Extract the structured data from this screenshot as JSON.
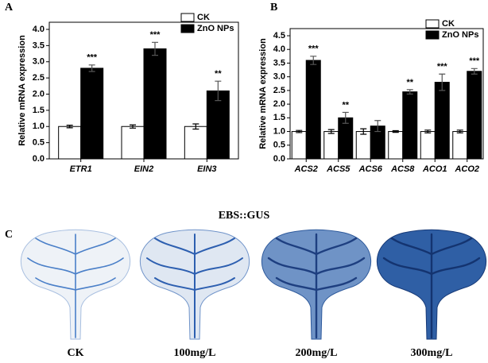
{
  "chart_data": [
    {
      "type": "bar",
      "panel_label": "A",
      "ylabel": "Relative mRNA expression",
      "categories": [
        "ETR1",
        "EIN2",
        "EIN3"
      ],
      "series": [
        {
          "name": "CK",
          "color": "#ffffff",
          "values": [
            1,
            1,
            1
          ],
          "errors": [
            0.04,
            0.05,
            0.08
          ]
        },
        {
          "name": "ZnO NPs",
          "color": "#000000",
          "values": [
            2.8,
            3.4,
            2.1
          ],
          "errors": [
            0.1,
            0.2,
            0.3
          ]
        }
      ],
      "significance": [
        "***",
        "***",
        "**"
      ],
      "ylim": [
        0,
        4
      ],
      "yticks": [
        {
          "value": 0,
          "label": "0.0"
        },
        0.5,
        {
          "value": 1,
          "label": "1.0"
        },
        1.5,
        {
          "value": 2,
          "label": "2.0"
        },
        2.5,
        {
          "value": 3,
          "label": "3.0"
        },
        3.5,
        {
          "value": 4,
          "label": "4.0"
        }
      ],
      "legend": "upper right"
    },
    {
      "type": "bar",
      "panel_label": "B",
      "ylabel": "Relative mRNA expression",
      "categories": [
        "ACS2",
        "ACS5",
        "ACS6",
        "ACS8",
        "ACO1",
        "ACO2"
      ],
      "series": [
        {
          "name": "CK",
          "color": "#ffffff",
          "values": [
            1,
            1,
            1,
            1,
            1,
            1
          ],
          "errors": [
            0.04,
            0.07,
            0.1,
            0.03,
            0.05,
            0.05
          ]
        },
        {
          "name": "ZnO NPs",
          "color": "#000000",
          "values": [
            3.6,
            1.5,
            1.2,
            2.45,
            2.8,
            3.2
          ],
          "errors": [
            0.15,
            0.2,
            0.2,
            0.08,
            0.3,
            0.1
          ]
        }
      ],
      "significance": [
        "***",
        "**",
        null,
        "**",
        "***",
        "***"
      ],
      "ylim": [
        0,
        4.5
      ],
      "yticks": [
        {
          "value": 0,
          "label": "0.0"
        },
        0.5,
        {
          "value": 1,
          "label": "1.0"
        },
        1.5,
        {
          "value": 2,
          "label": "2.0"
        },
        2.5,
        {
          "value": 3,
          "label": "3.0"
        },
        3.5,
        {
          "value": 4,
          "label": "4.0"
        },
        4.5
      ],
      "legend": "upper right"
    }
  ],
  "panel_c": {
    "label": "C",
    "title": "EBS::GUS",
    "images": [
      "CK",
      "100mg/L",
      "200mg/L",
      "300mg/L"
    ]
  }
}
